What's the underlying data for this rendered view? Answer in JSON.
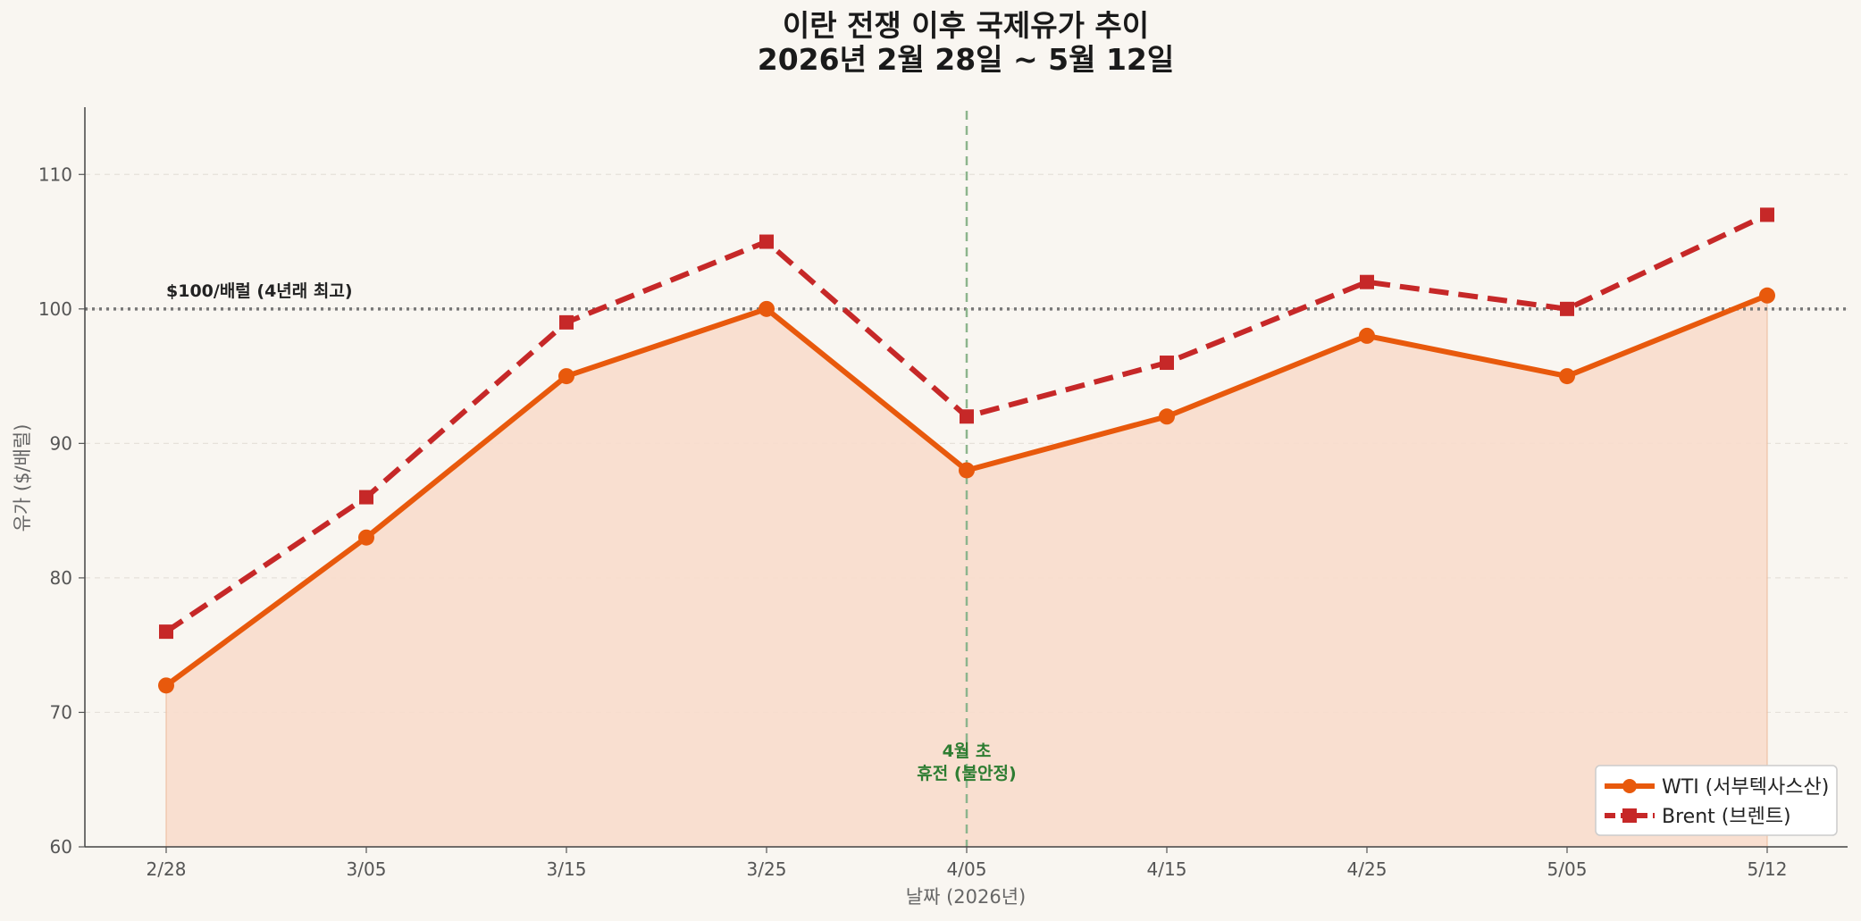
{
  "chart_data": {
    "type": "line",
    "title": [
      "이란 전쟁 이후 국제유가 추이",
      "2026년 2월 28일 ~ 5월 12일"
    ],
    "xlabel": "날짜 (2026년)",
    "ylabel": "유가 ($/배럴)",
    "categories": [
      "2/28",
      "3/05",
      "3/15",
      "3/25",
      "4/05",
      "4/15",
      "4/25",
      "5/05",
      "5/12"
    ],
    "ylim": [
      60,
      115
    ],
    "yticks": [
      60,
      70,
      80,
      90,
      100,
      110
    ],
    "grid": "horizontal dashed",
    "legend_position": "bottom-right",
    "series": [
      {
        "name": "WTI (서부텍사스산)",
        "values": [
          72,
          83,
          95,
          100,
          88,
          92,
          98,
          95,
          101
        ],
        "color": "#e8590c",
        "marker": "circle",
        "style": "solid",
        "fill": "#f8ddcc"
      },
      {
        "name": "Brent (브렌트)",
        "values": [
          76,
          86,
          99,
          105,
          92,
          96,
          102,
          100,
          107
        ],
        "color": "#c62828",
        "marker": "square",
        "style": "dashed"
      }
    ],
    "reference_line": {
      "y": 100,
      "label": "$100/배럴 (4년래 최고)",
      "color": "#777777"
    },
    "event_line": {
      "category": "4/05",
      "label": [
        "4월 초",
        "휴전 (불안정)"
      ],
      "color": "#8db58d",
      "text_color": "#2e7d32"
    }
  }
}
